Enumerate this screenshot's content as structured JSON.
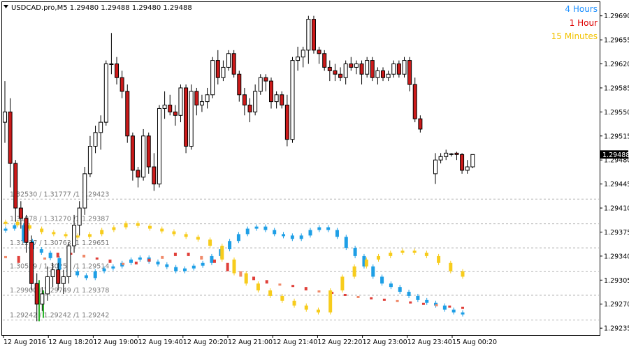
{
  "header": {
    "symbol_line": "USDCAD.pro,M5  1.29480 1.29488 1.29480 1.29488"
  },
  "legend": [
    {
      "label": "4 Hours",
      "color": "#1E90FF"
    },
    {
      "label": "1 Hour",
      "color": "#DD0000"
    },
    {
      "label": "15 Minutes",
      "color": "#F2C200"
    }
  ],
  "colors": {
    "bull_candle": "#FFFFFF",
    "bear_candle": "#CC1A1A",
    "level_line": "#B4B4B4",
    "price_tag_bg": "#000000",
    "price_tag_fg": "#FFFFFF",
    "blue_series": "#1E9FE6",
    "yellow_series": "#F7CC1C",
    "red_series": "#E0403A",
    "salmon_series": "#F08A6A",
    "green_series": "#2BB52B"
  },
  "chart_data": {
    "type": "candlestick",
    "y_axis": {
      "ylim": [
        1.29225,
        1.2971
      ],
      "ticks": [
        "1.29690",
        "1.29655",
        "1.29620",
        "1.29585",
        "1.29550",
        "1.29515",
        "1.29480",
        "1.29445",
        "1.29410",
        "1.29375",
        "1.29340",
        "1.29305",
        "1.29270",
        "1.29235"
      ],
      "current_price": "1.29488"
    },
    "x_axis": {
      "ticks": [
        "12 Aug 2016",
        "12 Aug 18:20",
        "12 Aug 19:00",
        "12 Aug 19:40",
        "12 Aug 20:20",
        "12 Aug 21:00",
        "12 Aug 21:40",
        "12 Aug 22:20",
        "12 Aug 23:00",
        "12 Aug 23:40",
        "15 Aug 00:20"
      ]
    },
    "level_labels": [
      {
        "text": "1.32530 / 1.31777 /1 1.29423",
        "price": 1.29423
      },
      {
        "text": "1.31878 / 1.31270 /1 1.29387",
        "price": 1.29387
      },
      {
        "text": "1.31217 / 1.30763 /1 1.29651",
        "price": 1.29352
      },
      {
        "text": "1.30559 / 1.30256 /1 1.29514",
        "price": 1.29318
      },
      {
        "text": "1.29900 / 1.29749 /1 1.29378",
        "price": 1.29283
      },
      {
        "text": "1.29242 / 1.29242 /1 1.29242",
        "price": 1.29247
      }
    ],
    "candles": [
      {
        "o": 1.29535,
        "h": 1.29595,
        "l": 1.29505,
        "c": 1.2955
      },
      {
        "o": 1.2955,
        "h": 1.2957,
        "l": 1.2944,
        "c": 1.29475
      },
      {
        "o": 1.29475,
        "h": 1.2948,
        "l": 1.2939,
        "c": 1.2941
      },
      {
        "o": 1.2941,
        "h": 1.2942,
        "l": 1.2938,
        "c": 1.29395
      },
      {
        "o": 1.29395,
        "h": 1.294,
        "l": 1.29345,
        "c": 1.2936
      },
      {
        "o": 1.2936,
        "h": 1.2937,
        "l": 1.2929,
        "c": 1.293
      },
      {
        "o": 1.293,
        "h": 1.29315,
        "l": 1.29245,
        "c": 1.2927
      },
      {
        "o": 1.2927,
        "h": 1.29295,
        "l": 1.2926,
        "c": 1.29285
      },
      {
        "o": 1.29285,
        "h": 1.29325,
        "l": 1.29275,
        "c": 1.2931
      },
      {
        "o": 1.2931,
        "h": 1.2933,
        "l": 1.29295,
        "c": 1.2932
      },
      {
        "o": 1.2932,
        "h": 1.2933,
        "l": 1.2929,
        "c": 1.293
      },
      {
        "o": 1.293,
        "h": 1.2932,
        "l": 1.29285,
        "c": 1.2931
      },
      {
        "o": 1.2931,
        "h": 1.2936,
        "l": 1.293,
        "c": 1.29355
      },
      {
        "o": 1.29355,
        "h": 1.294,
        "l": 1.29345,
        "c": 1.29385
      },
      {
        "o": 1.29385,
        "h": 1.2942,
        "l": 1.2937,
        "c": 1.2941
      },
      {
        "o": 1.2941,
        "h": 1.2947,
        "l": 1.294,
        "c": 1.2946
      },
      {
        "o": 1.2946,
        "h": 1.29515,
        "l": 1.29455,
        "c": 1.295
      },
      {
        "o": 1.295,
        "h": 1.2953,
        "l": 1.2949,
        "c": 1.2952
      },
      {
        "o": 1.2952,
        "h": 1.29545,
        "l": 1.29495,
        "c": 1.29535
      },
      {
        "o": 1.29535,
        "h": 1.29625,
        "l": 1.2953,
        "c": 1.2962
      },
      {
        "o": 1.2962,
        "h": 1.29665,
        "l": 1.29605,
        "c": 1.2962
      },
      {
        "o": 1.2962,
        "h": 1.2963,
        "l": 1.2959,
        "c": 1.296
      },
      {
        "o": 1.296,
        "h": 1.2961,
        "l": 1.2957,
        "c": 1.2958
      },
      {
        "o": 1.2958,
        "h": 1.2959,
        "l": 1.29505,
        "c": 1.29515
      },
      {
        "o": 1.29515,
        "h": 1.2952,
        "l": 1.2945,
        "c": 1.29465
      },
      {
        "o": 1.29465,
        "h": 1.2947,
        "l": 1.2944,
        "c": 1.29455
      },
      {
        "o": 1.29455,
        "h": 1.29525,
        "l": 1.2945,
        "c": 1.29515
      },
      {
        "o": 1.29515,
        "h": 1.2952,
        "l": 1.2946,
        "c": 1.2947
      },
      {
        "o": 1.2947,
        "h": 1.2949,
        "l": 1.29435,
        "c": 1.29445
      },
      {
        "o": 1.29445,
        "h": 1.2956,
        "l": 1.2944,
        "c": 1.29555
      },
      {
        "o": 1.29555,
        "h": 1.2958,
        "l": 1.2954,
        "c": 1.2956
      },
      {
        "o": 1.2956,
        "h": 1.29575,
        "l": 1.29545,
        "c": 1.2955
      },
      {
        "o": 1.2955,
        "h": 1.2956,
        "l": 1.2953,
        "c": 1.29545
      },
      {
        "o": 1.29545,
        "h": 1.2959,
        "l": 1.29535,
        "c": 1.29585
      },
      {
        "o": 1.29585,
        "h": 1.2959,
        "l": 1.2949,
        "c": 1.295
      },
      {
        "o": 1.295,
        "h": 1.2959,
        "l": 1.29495,
        "c": 1.2958
      },
      {
        "o": 1.2958,
        "h": 1.29585,
        "l": 1.29545,
        "c": 1.2956
      },
      {
        "o": 1.2956,
        "h": 1.29575,
        "l": 1.2955,
        "c": 1.29565
      },
      {
        "o": 1.29565,
        "h": 1.29585,
        "l": 1.29555,
        "c": 1.29575
      },
      {
        "o": 1.29575,
        "h": 1.2963,
        "l": 1.2957,
        "c": 1.29625
      },
      {
        "o": 1.29625,
        "h": 1.2964,
        "l": 1.2959,
        "c": 1.296
      },
      {
        "o": 1.296,
        "h": 1.29625,
        "l": 1.29595,
        "c": 1.29615
      },
      {
        "o": 1.29615,
        "h": 1.2964,
        "l": 1.2961,
        "c": 1.29635
      },
      {
        "o": 1.29635,
        "h": 1.2964,
        "l": 1.296,
        "c": 1.29605
      },
      {
        "o": 1.29605,
        "h": 1.2961,
        "l": 1.29565,
        "c": 1.29575
      },
      {
        "o": 1.29575,
        "h": 1.29585,
        "l": 1.29545,
        "c": 1.2956
      },
      {
        "o": 1.2956,
        "h": 1.2957,
        "l": 1.29535,
        "c": 1.2955
      },
      {
        "o": 1.2955,
        "h": 1.2959,
        "l": 1.29545,
        "c": 1.2958
      },
      {
        "o": 1.2958,
        "h": 1.29605,
        "l": 1.29575,
        "c": 1.296
      },
      {
        "o": 1.296,
        "h": 1.29605,
        "l": 1.2958,
        "c": 1.29595
      },
      {
        "o": 1.29595,
        "h": 1.296,
        "l": 1.29555,
        "c": 1.29565
      },
      {
        "o": 1.29565,
        "h": 1.2958,
        "l": 1.29555,
        "c": 1.29575
      },
      {
        "o": 1.29575,
        "h": 1.2958,
        "l": 1.29555,
        "c": 1.2956
      },
      {
        "o": 1.2956,
        "h": 1.29575,
        "l": 1.295,
        "c": 1.2951
      },
      {
        "o": 1.2951,
        "h": 1.2963,
        "l": 1.29505,
        "c": 1.29625
      },
      {
        "o": 1.29625,
        "h": 1.29645,
        "l": 1.2961,
        "c": 1.2963
      },
      {
        "o": 1.2963,
        "h": 1.29645,
        "l": 1.29615,
        "c": 1.2964
      },
      {
        "o": 1.2964,
        "h": 1.2969,
        "l": 1.2962,
        "c": 1.29685
      },
      {
        "o": 1.29685,
        "h": 1.2969,
        "l": 1.29635,
        "c": 1.2964
      },
      {
        "o": 1.2964,
        "h": 1.29645,
        "l": 1.2962,
        "c": 1.29635
      },
      {
        "o": 1.29635,
        "h": 1.2964,
        "l": 1.2961,
        "c": 1.29615
      },
      {
        "o": 1.29615,
        "h": 1.29625,
        "l": 1.29595,
        "c": 1.2961
      },
      {
        "o": 1.2961,
        "h": 1.2962,
        "l": 1.29595,
        "c": 1.29605
      },
      {
        "o": 1.29605,
        "h": 1.29615,
        "l": 1.29595,
        "c": 1.296
      },
      {
        "o": 1.296,
        "h": 1.29625,
        "l": 1.2959,
        "c": 1.2962
      },
      {
        "o": 1.2962,
        "h": 1.2963,
        "l": 1.2961,
        "c": 1.29615
      },
      {
        "o": 1.29615,
        "h": 1.29625,
        "l": 1.29605,
        "c": 1.2962
      },
      {
        "o": 1.2962,
        "h": 1.29625,
        "l": 1.2959,
        "c": 1.29605
      },
      {
        "o": 1.29605,
        "h": 1.2963,
        "l": 1.296,
        "c": 1.29625
      },
      {
        "o": 1.29625,
        "h": 1.2963,
        "l": 1.29595,
        "c": 1.296
      },
      {
        "o": 1.296,
        "h": 1.29615,
        "l": 1.2959,
        "c": 1.2961
      },
      {
        "o": 1.2961,
        "h": 1.29615,
        "l": 1.29595,
        "c": 1.296
      },
      {
        "o": 1.296,
        "h": 1.2961,
        "l": 1.29595,
        "c": 1.29605
      },
      {
        "o": 1.29605,
        "h": 1.29625,
        "l": 1.296,
        "c": 1.2962
      },
      {
        "o": 1.2962,
        "h": 1.29625,
        "l": 1.296,
        "c": 1.29605
      },
      {
        "o": 1.29605,
        "h": 1.2963,
        "l": 1.296,
        "c": 1.29625
      },
      {
        "o": 1.29625,
        "h": 1.2963,
        "l": 1.2958,
        "c": 1.2959
      },
      {
        "o": 1.2959,
        "h": 1.296,
        "l": 1.29535,
        "c": 1.2954
      },
      {
        "o": 1.2954,
        "h": 1.29545,
        "l": 1.2952,
        "c": 1.29525
      },
      {
        "o": 1.2946,
        "h": 1.2949,
        "l": 1.29445,
        "c": 1.2948
      },
      {
        "o": 1.2948,
        "h": 1.2949,
        "l": 1.29475,
        "c": 1.29485
      },
      {
        "o": 1.29485,
        "h": 1.29495,
        "l": 1.2948,
        "c": 1.2949
      },
      {
        "o": 1.29488,
        "h": 1.2949,
        "l": 1.29485,
        "c": 1.29489
      },
      {
        "o": 1.2949,
        "h": 1.29492,
        "l": 1.2948,
        "c": 1.29488
      },
      {
        "o": 1.29488,
        "h": 1.2949,
        "l": 1.2946,
        "c": 1.29465
      },
      {
        "o": 1.29465,
        "h": 1.2948,
        "l": 1.2946,
        "c": 1.2947
      },
      {
        "o": 1.2947,
        "h": 1.29488,
        "l": 1.29468,
        "c": 1.29488
      }
    ],
    "series": [
      {
        "name": "4 Hours",
        "color": "#1E9FE6",
        "points": [
          1.2938,
          1.29385,
          1.29362,
          1.2935,
          1.29345,
          1.29337,
          1.2932,
          1.29318,
          1.29312,
          1.29308,
          1.29318,
          1.29322,
          1.29325,
          1.2933,
          1.29335,
          1.29338,
          1.29332,
          1.29328,
          1.29324,
          1.29318,
          1.29322,
          1.29326,
          1.2933,
          1.2934,
          1.2935,
          1.29362,
          1.29372,
          1.2938,
          1.29383,
          1.29378,
          1.29372,
          1.2937,
          1.29365,
          1.2937,
          1.29378,
          1.29382,
          1.29378,
          1.29368,
          1.29352,
          1.2934,
          1.29325,
          1.2931,
          1.293,
          1.29295,
          1.29288,
          1.29282,
          1.29276,
          1.29272,
          1.29268,
          1.29262,
          1.29258,
          1.29255
        ]
      },
      {
        "name": "1 Hour",
        "color": "#DD0000",
        "points": [
          1.2934,
          1.2933,
          1.29335,
          1.29338,
          1.29345,
          1.29342,
          1.29338,
          1.29335,
          1.2933,
          1.29328,
          1.29332,
          1.29336,
          1.2934,
          1.29345,
          1.2934,
          1.29335,
          1.2933,
          1.29318,
          1.2931,
          1.29305,
          1.293,
          1.29298,
          1.29295,
          1.2929,
          1.29288,
          1.29285,
          1.29282,
          1.2928,
          1.29278,
          1.29276,
          1.29274,
          1.29272,
          1.2927,
          1.29268,
          1.29266,
          1.29264
        ]
      },
      {
        "name": "15 Minutes",
        "color": "#F7CC1C",
        "points": [
          1.2939,
          1.29385,
          1.2938,
          1.29375,
          1.29372,
          1.2937,
          1.29368,
          1.29372,
          1.29378,
          1.29382,
          1.29388,
          1.29384,
          1.2938,
          1.29376,
          1.29372,
          1.29368,
          1.29364,
          1.29355,
          1.29335,
          1.29315,
          1.293,
          1.2929,
          1.29282,
          1.29275,
          1.29268,
          1.29262,
          1.29258,
          1.2929,
          1.2931,
          1.29325,
          1.29335,
          1.2934,
          1.29345,
          1.29348,
          1.29345,
          1.2934,
          1.2933,
          1.29318,
          1.2931
        ]
      }
    ]
  }
}
